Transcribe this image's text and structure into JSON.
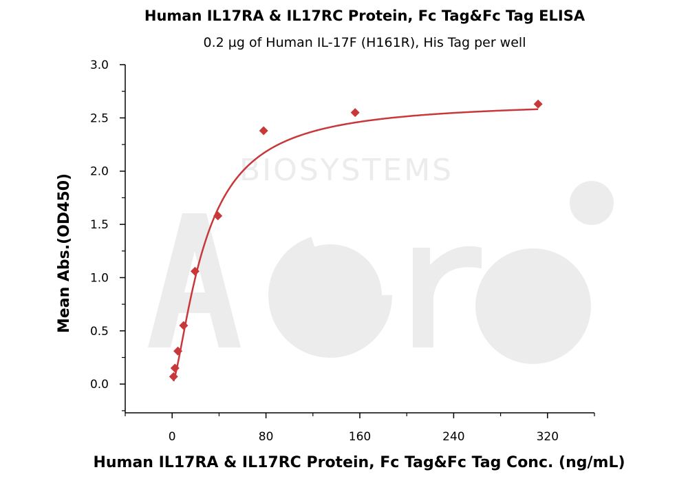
{
  "chart_data": {
    "type": "scatter",
    "title": "Human IL17RA & IL17RC Protein, Fc Tag&Fc Tag ELISA",
    "subtitle": "0.2 µg of Human IL-17F (H161R), His Tag per well",
    "xlabel": "Human IL17RA & IL17RC Protein, Fc Tag&Fc Tag Conc. (ng/mL)",
    "ylabel": "Mean Abs.(OD450)",
    "xlim": [
      -40,
      360
    ],
    "ylim": [
      -0.27,
      3.0
    ],
    "xticks": [
      0,
      80,
      160,
      240,
      320
    ],
    "xtick_labels": [
      "0",
      "80",
      "160",
      "240",
      "320"
    ],
    "yticks": [
      0.0,
      0.5,
      1.0,
      1.5,
      2.0,
      2.5,
      3.0
    ],
    "ytick_labels": [
      "0.0",
      "0.5",
      "1.0",
      "1.5",
      "2.0",
      "2.5",
      "3.0"
    ],
    "grid": false,
    "points": {
      "x": [
        1.2,
        2.4,
        4.9,
        9.8,
        19.5,
        39,
        78,
        156,
        312
      ],
      "y": [
        0.07,
        0.15,
        0.31,
        0.55,
        1.06,
        1.58,
        2.38,
        2.55,
        2.63
      ]
    },
    "fit_curve": {
      "model": "4PL",
      "bottom": 0.0,
      "top": 2.66,
      "ec50": 28.0,
      "hill": 1.45
    },
    "marker_color": "#c8373a",
    "line_color": "#c8373a"
  },
  "watermark": {
    "text": "BIOSYSTEMS"
  }
}
